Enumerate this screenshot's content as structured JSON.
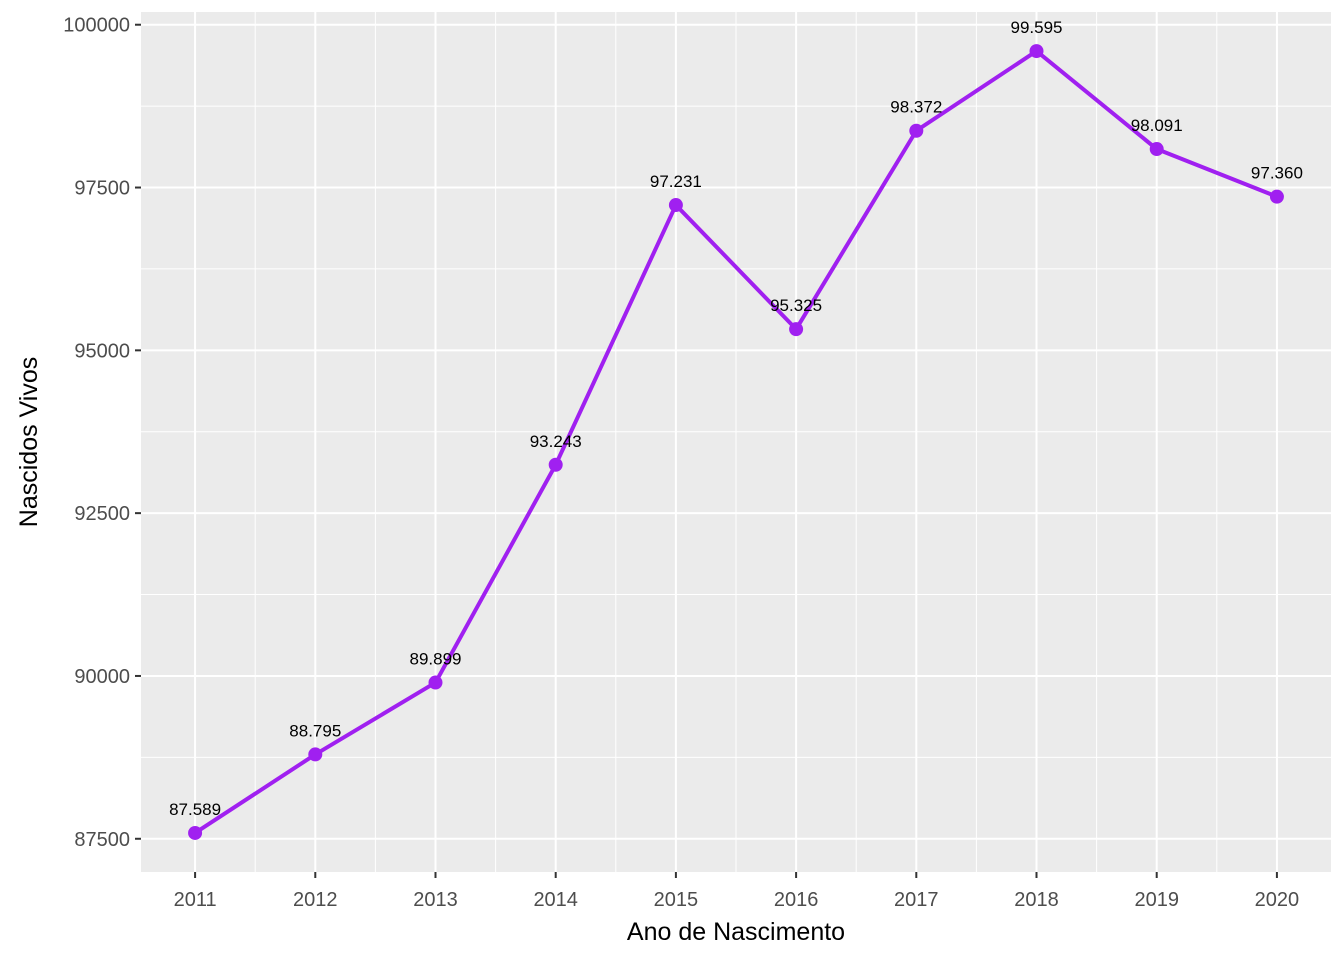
{
  "chart_data": {
    "type": "line",
    "title": "",
    "xlabel": "Ano de Nascimento",
    "ylabel": "Nascidos Vivos",
    "x": [
      2011,
      2012,
      2013,
      2014,
      2015,
      2016,
      2017,
      2018,
      2019,
      2020
    ],
    "x_tick_labels": [
      "2011",
      "2012",
      "2013",
      "2014",
      "2015",
      "2016",
      "2017",
      "2018",
      "2019",
      "2020"
    ],
    "values": [
      87589,
      88795,
      89899,
      93243,
      97231,
      95325,
      98372,
      99595,
      98091,
      97360
    ],
    "data_labels": [
      "87.589",
      "88.795",
      "89.899",
      "93.243",
      "97.231",
      "95.325",
      "98.372",
      "99.595",
      "98.091",
      "97.360"
    ],
    "y_ticks": [
      87500,
      90000,
      92500,
      95000,
      97500,
      100000
    ],
    "y_tick_labels": [
      "87500",
      "90000",
      "92500",
      "95000",
      "97500",
      "100000"
    ],
    "xlim": [
      2010.55,
      2020.45
    ],
    "ylim": [
      86989.7,
      100195.3
    ],
    "grid": true,
    "legend": "none",
    "colors": {
      "series": "#a020f0",
      "panel": "#ebebeb",
      "grid": "#ffffff"
    }
  }
}
